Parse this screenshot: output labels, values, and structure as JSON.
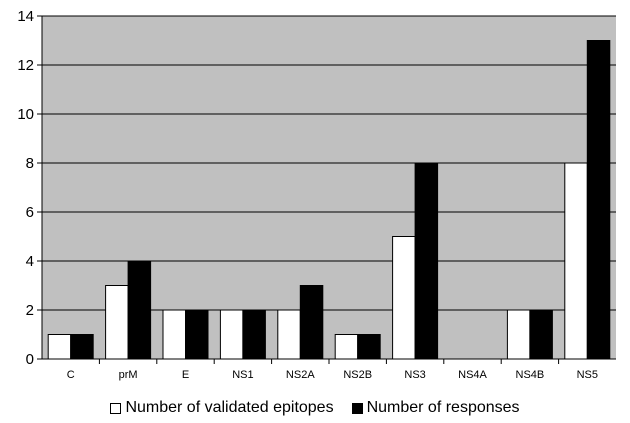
{
  "chart_data": {
    "type": "bar",
    "categories": [
      "C",
      "prM",
      "E",
      "NS1",
      "NS2A",
      "NS2B",
      "NS3",
      "NS4A",
      "NS4B",
      "NS5"
    ],
    "series": [
      {
        "name": "Number of validated epitopes",
        "values": [
          1,
          3,
          2,
          2,
          2,
          1,
          5,
          0,
          2,
          8
        ],
        "color": "#ffffff"
      },
      {
        "name": "Number of responses",
        "values": [
          1,
          4,
          2,
          2,
          3,
          1,
          8,
          0,
          2,
          13
        ],
        "color": "#000000"
      }
    ],
    "ylim": [
      0,
      14
    ],
    "yticks": [
      "0",
      "2",
      "4",
      "6",
      "8",
      "10",
      "12",
      "14"
    ],
    "title": "",
    "xlabel": "",
    "ylabel": "",
    "grid": true,
    "plot_background": "#c0c0c0",
    "legend_position": "bottom"
  }
}
